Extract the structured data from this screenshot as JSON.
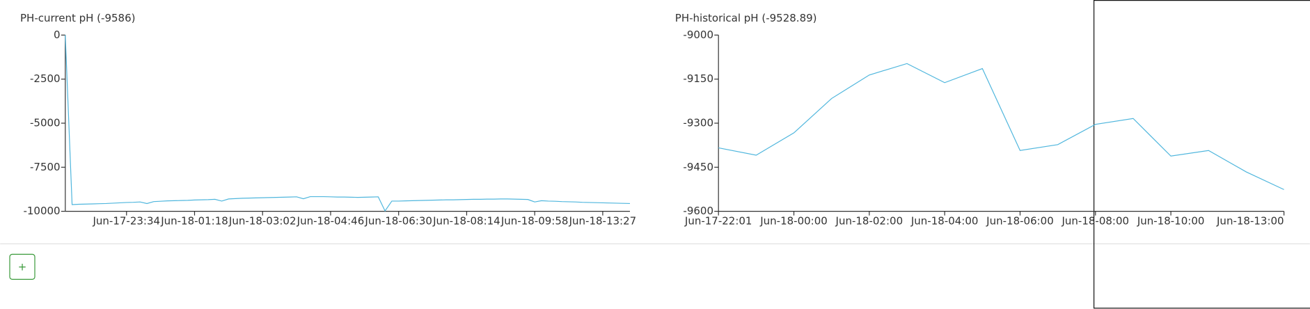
{
  "chart_data": [
    {
      "type": "line",
      "title": "PH-current pH (-9586)",
      "categories": [
        null,
        null,
        null,
        null,
        null,
        null,
        null,
        null,
        null,
        "Jun-17-23:34",
        null,
        null,
        null,
        null,
        null,
        null,
        null,
        null,
        null,
        "Jun-18-01:18",
        null,
        null,
        null,
        null,
        null,
        null,
        null,
        null,
        null,
        "Jun-18-03:02",
        null,
        null,
        null,
        null,
        null,
        null,
        null,
        null,
        null,
        "Jun-18-04:46",
        null,
        null,
        null,
        null,
        null,
        null,
        null,
        null,
        null,
        "Jun-18-06:30",
        null,
        null,
        null,
        null,
        null,
        null,
        null,
        null,
        null,
        "Jun-18-08:14",
        null,
        null,
        null,
        null,
        null,
        null,
        null,
        null,
        null,
        "Jun-18-09:58",
        null,
        null,
        null,
        null,
        null,
        null,
        null,
        null,
        null,
        "Jun-18-13:27",
        null,
        null,
        null,
        null
      ],
      "series": [
        {
          "name": "pH",
          "color": "#4fb6dd",
          "values": [
            0,
            -9620,
            -9600,
            -9590,
            -9580,
            -9570,
            -9560,
            -9540,
            -9520,
            -9500,
            -9490,
            -9470,
            -9560,
            -9450,
            -9430,
            -9410,
            -9400,
            -9390,
            -9380,
            -9360,
            -9350,
            -9340,
            -9320,
            -9420,
            -9300,
            -9280,
            -9260,
            -9250,
            -9240,
            -9230,
            -9220,
            -9210,
            -9200,
            -9190,
            -9180,
            -9290,
            -9170,
            -9170,
            -9170,
            -9180,
            -9190,
            -9190,
            -9200,
            -9210,
            -9200,
            -9190,
            -9180,
            -9980,
            -9420,
            -9420,
            -9410,
            -9400,
            -9390,
            -9380,
            -9370,
            -9360,
            -9350,
            -9350,
            -9340,
            -9330,
            -9320,
            -9320,
            -9310,
            -9310,
            -9300,
            -9300,
            -9310,
            -9320,
            -9330,
            -9470,
            -9400,
            -9420,
            -9430,
            -9450,
            -9460,
            -9470,
            -9490,
            -9500,
            -9510,
            -9520,
            -9530,
            -9540,
            -9550,
            -9560
          ]
        }
      ],
      "ylim": [
        -10000,
        0
      ],
      "yticks": [
        0,
        -2500,
        -5000,
        -7500,
        -10000
      ]
    },
    {
      "type": "line",
      "title": "PH-historical pH (-9528.89)",
      "categories": [
        "Jun-17-22:01",
        null,
        "Jun-18-00:00",
        null,
        "Jun-18-02:00",
        null,
        "Jun-18-04:00",
        null,
        "Jun-18-06:00",
        null,
        "Jun-18-08:00",
        null,
        "Jun-18-10:00",
        null,
        null,
        "Jun-18-13:00"
      ],
      "series": [
        {
          "name": "pH",
          "color": "#4fb6dd",
          "values": [
            -9384,
            -9409,
            -9333,
            -9216,
            -9136,
            -9097,
            -9162,
            -9114,
            -9393,
            -9373,
            -9304,
            -9284,
            -9412,
            -9393,
            -9466,
            -9526
          ]
        }
      ],
      "ylim": [
        -9600,
        -9000
      ],
      "yticks": [
        -9000,
        -9150,
        -9300,
        -9450,
        -9600
      ]
    }
  ],
  "add_button": "+"
}
